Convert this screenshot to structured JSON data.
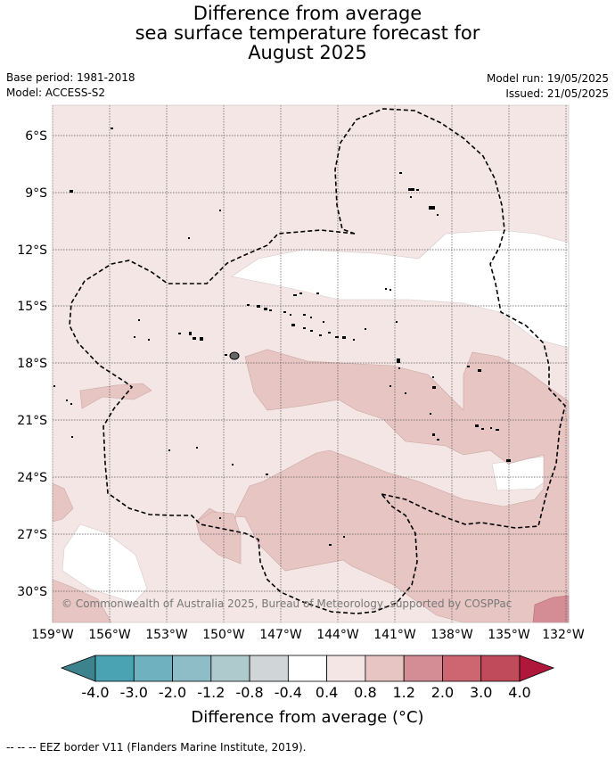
{
  "title_lines": [
    "Difference from average",
    "sea surface temperature forecast for",
    "August 2025"
  ],
  "meta": {
    "base_period": "Base period: 1981-2018",
    "model": "Model: ACCESS-S2",
    "model_run": "Model run: 19/05/2025",
    "issued": "Issued: 21/05/2025"
  },
  "map": {
    "lon_ticks": [
      "159°W",
      "156°W",
      "153°W",
      "150°W",
      "147°W",
      "144°W",
      "141°W",
      "138°W",
      "135°W",
      "132°W"
    ],
    "lat_ticks": [
      "6°S",
      "9°S",
      "12°S",
      "15°S",
      "18°S",
      "21°S",
      "24°S",
      "27°S",
      "30°S"
    ],
    "copyright": "© Commonwealth of Australia 2025, Bureau of Meteorology, supported by COSPPac",
    "background_class_color": "#f4e6e5"
  },
  "colorbar": {
    "tick_labels": [
      "-4.0",
      "-3.0",
      "-2.0",
      "-1.2",
      "-0.8",
      "-0.4",
      "0.4",
      "0.8",
      "1.2",
      "2.0",
      "3.0",
      "4.0"
    ],
    "colors": [
      "#3d838e",
      "#49a3b3",
      "#6fb1be",
      "#8fbdc7",
      "#aecacd",
      "#d0d6d7",
      "#ffffff",
      "#f4e6e5",
      "#e7c5c3",
      "#d58d95",
      "#cd6671",
      "#c04b5a",
      "#b0183b"
    ],
    "title": "Difference from average (°C)"
  },
  "footnote": "--  --  -- EEZ border V11 (Flanders Marine Institute, 2019)."
}
